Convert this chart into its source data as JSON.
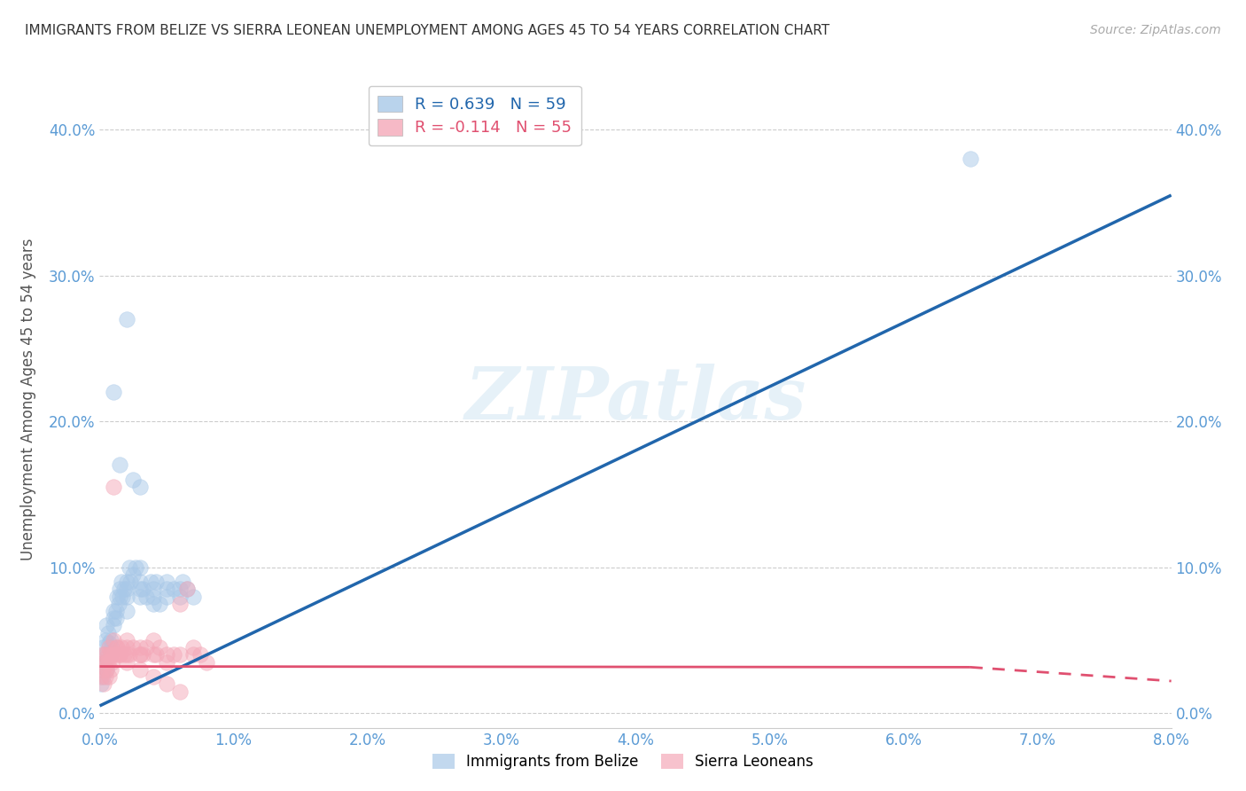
{
  "title": "IMMIGRANTS FROM BELIZE VS SIERRA LEONEAN UNEMPLOYMENT AMONG AGES 45 TO 54 YEARS CORRELATION CHART",
  "source": "Source: ZipAtlas.com",
  "tick_color": "#5b9bd5",
  "ylabel": "Unemployment Among Ages 45 to 54 years",
  "blue_R": 0.639,
  "blue_N": 59,
  "pink_R": -0.114,
  "pink_N": 55,
  "blue_label": "Immigrants from Belize",
  "pink_label": "Sierra Leoneans",
  "blue_color": "#a8c8e8",
  "pink_color": "#f4a8b8",
  "blue_line_color": "#2166ac",
  "pink_line_color": "#e05070",
  "xlim": [
    0.0,
    0.08
  ],
  "ylim": [
    -0.01,
    0.44
  ],
  "xticks": [
    0.0,
    0.01,
    0.02,
    0.03,
    0.04,
    0.05,
    0.06,
    0.07,
    0.08
  ],
  "yticks": [
    0.0,
    0.1,
    0.2,
    0.3,
    0.4
  ],
  "blue_line_x0": 0.0,
  "blue_line_y0": 0.005,
  "blue_line_x1": 0.08,
  "blue_line_y1": 0.355,
  "pink_line_x0": 0.0,
  "pink_line_y0": 0.032,
  "pink_line_x1": 0.08,
  "pink_line_y1": 0.022,
  "blue_x": [
    0.0002,
    0.0003,
    0.0004,
    0.0005,
    0.0006,
    0.0007,
    0.0008,
    0.0009,
    0.001,
    0.001,
    0.001,
    0.0012,
    0.0012,
    0.0013,
    0.0014,
    0.0015,
    0.0015,
    0.0016,
    0.0017,
    0.0018,
    0.002,
    0.002,
    0.002,
    0.002,
    0.0022,
    0.0023,
    0.0025,
    0.0025,
    0.0027,
    0.003,
    0.003,
    0.003,
    0.003,
    0.0032,
    0.0035,
    0.0038,
    0.004,
    0.004,
    0.004,
    0.0042,
    0.0045,
    0.005,
    0.005,
    0.005,
    0.0055,
    0.006,
    0.006,
    0.0062,
    0.0065,
    0.007,
    0.0001,
    0.0002,
    0.0003,
    0.0005,
    0.0008,
    0.001,
    0.0015,
    0.002,
    0.065,
    0.003
  ],
  "blue_y": [
    0.045,
    0.04,
    0.05,
    0.06,
    0.055,
    0.048,
    0.05,
    0.045,
    0.06,
    0.065,
    0.07,
    0.065,
    0.07,
    0.08,
    0.075,
    0.08,
    0.085,
    0.09,
    0.08,
    0.085,
    0.08,
    0.085,
    0.09,
    0.07,
    0.1,
    0.09,
    0.095,
    0.16,
    0.1,
    0.08,
    0.085,
    0.09,
    0.1,
    0.085,
    0.08,
    0.09,
    0.075,
    0.08,
    0.085,
    0.09,
    0.075,
    0.08,
    0.085,
    0.09,
    0.085,
    0.08,
    0.085,
    0.09,
    0.085,
    0.08,
    0.02,
    0.025,
    0.035,
    0.03,
    0.04,
    0.22,
    0.17,
    0.27,
    0.38,
    0.155
  ],
  "pink_x": [
    0.0002,
    0.0003,
    0.0004,
    0.0005,
    0.0006,
    0.0007,
    0.0008,
    0.001,
    0.001,
    0.0012,
    0.0013,
    0.0015,
    0.0016,
    0.0018,
    0.002,
    0.002,
    0.002,
    0.0022,
    0.0025,
    0.003,
    0.003,
    0.003,
    0.0032,
    0.0035,
    0.004,
    0.004,
    0.0042,
    0.0045,
    0.005,
    0.005,
    0.0055,
    0.006,
    0.006,
    0.0065,
    0.007,
    0.007,
    0.0075,
    0.008,
    0.0001,
    0.0002,
    0.0003,
    0.0004,
    0.0005,
    0.0006,
    0.0007,
    0.0008,
    0.0009,
    0.001,
    0.0012,
    0.0015,
    0.002,
    0.003,
    0.004,
    0.005,
    0.006
  ],
  "pink_y": [
    0.04,
    0.035,
    0.04,
    0.035,
    0.04,
    0.045,
    0.04,
    0.05,
    0.04,
    0.04,
    0.045,
    0.04,
    0.045,
    0.04,
    0.05,
    0.045,
    0.04,
    0.04,
    0.045,
    0.04,
    0.045,
    0.04,
    0.04,
    0.045,
    0.05,
    0.04,
    0.04,
    0.045,
    0.04,
    0.035,
    0.04,
    0.04,
    0.075,
    0.085,
    0.04,
    0.045,
    0.04,
    0.035,
    0.025,
    0.03,
    0.02,
    0.025,
    0.03,
    0.035,
    0.025,
    0.03,
    0.035,
    0.155,
    0.045,
    0.04,
    0.035,
    0.03,
    0.025,
    0.02,
    0.015
  ],
  "watermark": "ZIPatlas",
  "figsize": [
    14.06,
    8.92
  ],
  "dpi": 100
}
